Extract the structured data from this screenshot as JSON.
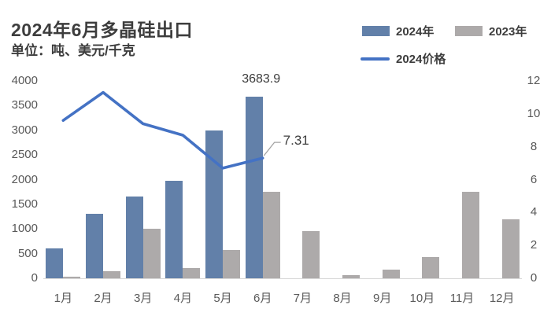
{
  "header": {
    "title": "2024年6月多晶硅出口",
    "subtitle": "单位：吨、美元/千克"
  },
  "legend": {
    "items": [
      {
        "label": "2024年",
        "type": "bar",
        "color": "#6280a9"
      },
      {
        "label": "2023年",
        "type": "bar",
        "color": "#adaaaa"
      },
      {
        "label": "2024价格",
        "type": "line",
        "color": "#4472c4"
      }
    ]
  },
  "chart_data": {
    "type": "bar+line",
    "title": "2024年6月多晶硅出口",
    "subtitle": "单位：吨、美元/千克",
    "categories": [
      "1月",
      "2月",
      "3月",
      "4月",
      "5月",
      "6月",
      "7月",
      "8月",
      "9月",
      "10月",
      "11月",
      "12月"
    ],
    "series": [
      {
        "name": "2024年",
        "type": "bar",
        "axis": "left",
        "color": "#6280a9",
        "values": [
          600,
          1300,
          1660,
          1970,
          2990,
          3683.9,
          null,
          null,
          null,
          null,
          null,
          null
        ]
      },
      {
        "name": "2023年",
        "type": "bar",
        "axis": "left",
        "color": "#adaaaa",
        "values": [
          25,
          145,
          1000,
          210,
          580,
          1760,
          950,
          70,
          180,
          430,
          1750,
          1200
        ]
      },
      {
        "name": "2024价格",
        "type": "line",
        "axis": "right",
        "color": "#4472c4",
        "values": [
          9.6,
          11.3,
          9.4,
          8.7,
          6.7,
          7.31,
          null,
          null,
          null,
          null,
          null,
          null
        ]
      }
    ],
    "left_axis": {
      "min": 0,
      "max": 4000,
      "step": 500,
      "ticks": [
        "0",
        "500",
        "1000",
        "1500",
        "2000",
        "2500",
        "3000",
        "3500",
        "4000"
      ]
    },
    "right_axis": {
      "min": 0,
      "max": 12,
      "step": 2,
      "ticks": [
        "0",
        "2",
        "4",
        "6",
        "8",
        "10",
        "12"
      ]
    },
    "grid": false,
    "legend_position": "top-right",
    "annotations": [
      {
        "kind": "bar-label",
        "text": "3683.9",
        "series": "2024年",
        "category_index": 5,
        "value": 3683.9
      },
      {
        "kind": "line-callout",
        "text": "7.31",
        "series": "2024价格",
        "category_index": 5,
        "value": 7.31
      }
    ]
  },
  "colors": {
    "bar_2024": "#6280a9",
    "bar_2023": "#adaaaa",
    "price_line": "#4472c4",
    "axis_text": "#595959",
    "title_text": "#3d3d3d",
    "axis_line": "#d8d8d8",
    "callout_connector": "#a3a3a3"
  }
}
